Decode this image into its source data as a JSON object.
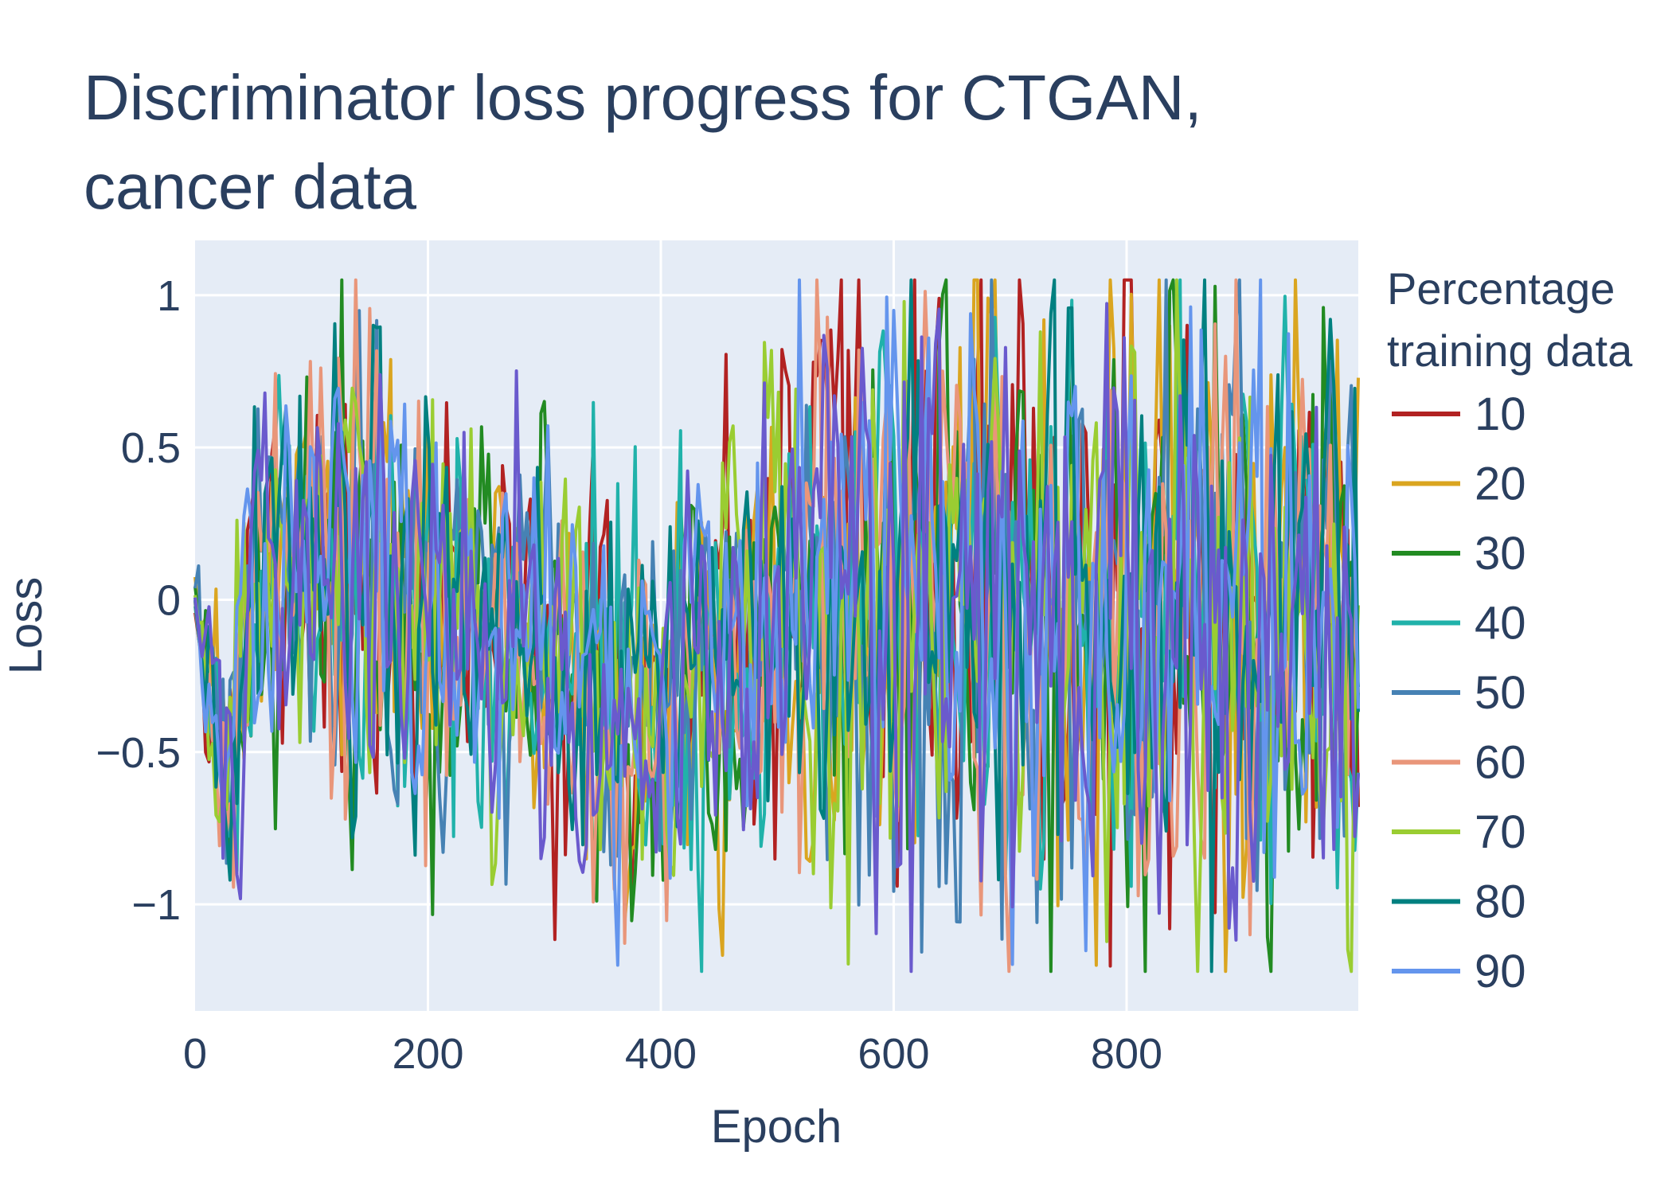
{
  "chart_data": {
    "type": "line",
    "title_lines": [
      "Discriminator loss progress for CTGAN,",
      "cancer data"
    ],
    "xlabel": "Epoch",
    "ylabel": "Loss",
    "xlim": [
      0,
      999
    ],
    "ylim": [
      -1.35,
      1.18
    ],
    "x_ticks": [
      0,
      200,
      400,
      600,
      800
    ],
    "x_tick_labels": [
      "0",
      "200",
      "400",
      "600",
      "800"
    ],
    "y_ticks": [
      1,
      0.5,
      0,
      -0.5,
      -1
    ],
    "y_tick_labels": [
      "1",
      "0.5",
      "0",
      "−0.5",
      "−1"
    ],
    "grid": true,
    "legend": {
      "title_lines": [
        "Percentage",
        "training data"
      ],
      "placement": "right"
    },
    "anchors": {
      "epochs": [
        0,
        20,
        50,
        100,
        150,
        200,
        250,
        300,
        350,
        400,
        450,
        500,
        550,
        600,
        650,
        700,
        750,
        800,
        850,
        900,
        950,
        999
      ],
      "mean_loss": [
        0.0,
        -0.55,
        0.05,
        0.1,
        0.0,
        0.0,
        -0.1,
        -0.15,
        -0.3,
        -0.35,
        -0.2,
        -0.05,
        0.05,
        0.0,
        0.0,
        0.0,
        0.0,
        0.0,
        0.0,
        0.0,
        0.0,
        0.0
      ],
      "spread": [
        0.05,
        0.3,
        0.35,
        0.45,
        0.5,
        0.45,
        0.35,
        0.38,
        0.4,
        0.42,
        0.4,
        0.55,
        0.6,
        0.62,
        0.62,
        0.62,
        0.62,
        0.62,
        0.62,
        0.62,
        0.62,
        0.62
      ]
    },
    "series": [
      {
        "name": "10",
        "color": "#b22222",
        "seed": 11
      },
      {
        "name": "20",
        "color": "#daa520",
        "seed": 23
      },
      {
        "name": "30",
        "color": "#228b22",
        "seed": 37
      },
      {
        "name": "40",
        "color": "#20b2aa",
        "seed": 41
      },
      {
        "name": "50",
        "color": "#4682b4",
        "seed": 53
      },
      {
        "name": "60",
        "color": "#e9967a",
        "seed": 67
      },
      {
        "name": "70",
        "color": "#9acd32",
        "seed": 71
      },
      {
        "name": "80",
        "color": "#008080",
        "seed": 83
      },
      {
        "name": "90",
        "color": "#6495ed",
        "seed": 97
      },
      {
        "name": "",
        "color": "#6a5acd",
        "seed": 101
      }
    ]
  }
}
